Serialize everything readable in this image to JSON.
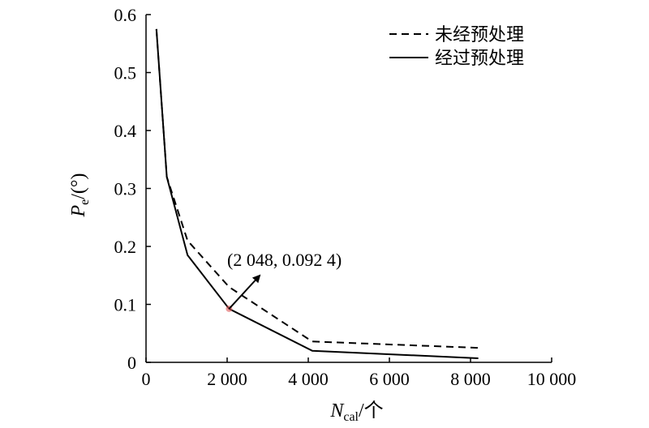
{
  "chart_data": {
    "type": "line",
    "xlabel": {
      "main": "N",
      "sub": "cal",
      "unit": "/个"
    },
    "ylabel": {
      "main": "P",
      "sub": "e",
      "unit": "/(°)"
    },
    "xlim": [
      0,
      10000
    ],
    "ylim": [
      0,
      0.6
    ],
    "xticks": [
      0,
      2000,
      4000,
      6000,
      8000,
      10000
    ],
    "xtick_labels": [
      "0",
      "2 000",
      "4 000",
      "6 000",
      "8 000",
      "10 000"
    ],
    "yticks": [
      0,
      0.1,
      0.2,
      0.3,
      0.4,
      0.5,
      0.6
    ],
    "ytick_labels": [
      "0",
      "0.1",
      "0.2",
      "0.3",
      "0.4",
      "0.5",
      "0.6"
    ],
    "grid": false,
    "legend_position": "top-right",
    "series": [
      {
        "name": "未经预处理",
        "style": "dashed",
        "color": "#000000",
        "x": [
          256,
          512,
          1024,
          2048,
          4096,
          8192
        ],
        "y": [
          0.575,
          0.32,
          0.21,
          0.13,
          0.036,
          0.025
        ]
      },
      {
        "name": "经过预处理",
        "style": "solid",
        "color": "#000000",
        "x": [
          256,
          512,
          1024,
          2048,
          4096,
          8192
        ],
        "y": [
          0.575,
          0.32,
          0.185,
          0.0924,
          0.02,
          0.007
        ]
      }
    ],
    "annotation": {
      "text": "(2 048, 0.092 4)",
      "x": 2048,
      "y": 0.0924,
      "marker_color": "#e05a5a"
    }
  }
}
